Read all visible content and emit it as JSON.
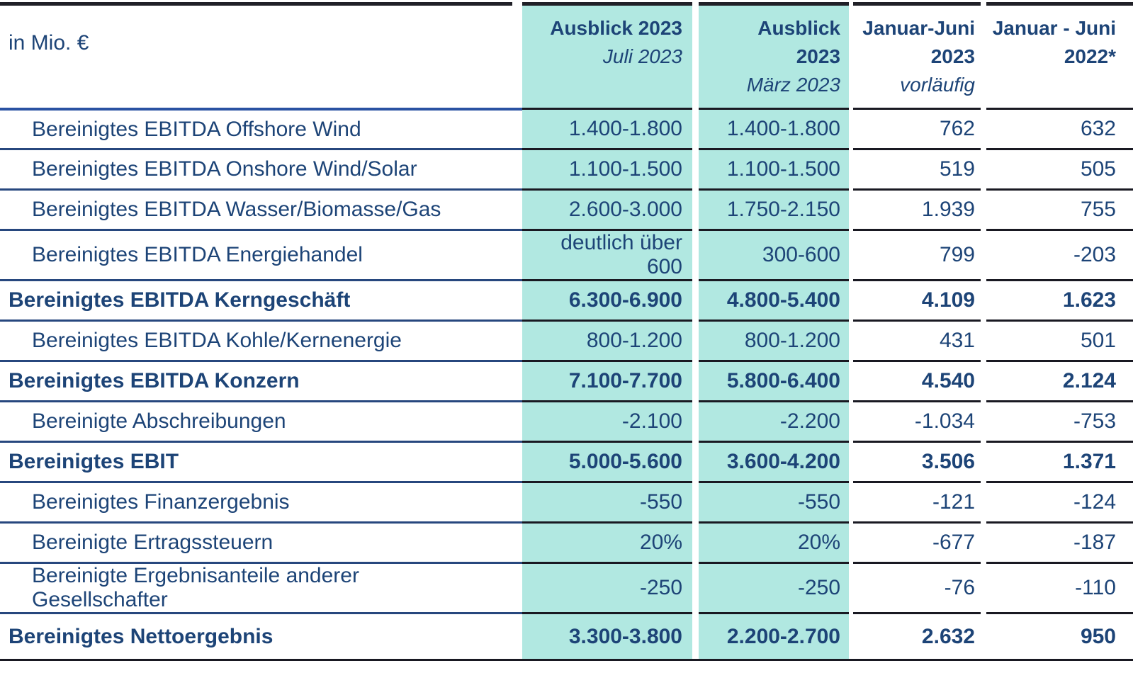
{
  "table": {
    "unit_label": "in Mio. €",
    "columns": [
      {
        "title": "Ausblick 2023",
        "subtitle": "Juli 2023",
        "highlight": true
      },
      {
        "title": "Ausblick 2023",
        "subtitle": "März 2023",
        "highlight": true
      },
      {
        "title": "Januar-Juni 2023",
        "subtitle": "vorläufig",
        "highlight": false
      },
      {
        "title": "Januar - Juni 2022*",
        "subtitle": "",
        "highlight": false
      }
    ],
    "rows": [
      {
        "label": "Bereinigtes EBITDA Offshore Wind",
        "bold": false,
        "values": [
          "1.400-1.800",
          "1.400-1.800",
          "762",
          "632"
        ]
      },
      {
        "label": "Bereinigtes EBITDA Onshore Wind/Solar",
        "bold": false,
        "values": [
          "1.100-1.500",
          "1.100-1.500",
          "519",
          "505"
        ]
      },
      {
        "label": "Bereinigtes EBITDA Wasser/Biomasse/Gas",
        "bold": false,
        "values": [
          "2.600-3.000",
          "1.750-2.150",
          "1.939",
          "755"
        ]
      },
      {
        "label": "Bereinigtes EBITDA Energiehandel",
        "bold": false,
        "values": [
          "deutlich über 600",
          "300-600",
          "799",
          "-203"
        ]
      },
      {
        "label": "Bereinigtes EBITDA Kerngeschäft",
        "bold": true,
        "values": [
          "6.300-6.900",
          "4.800-5.400",
          "4.109",
          "1.623"
        ]
      },
      {
        "label": "Bereinigtes EBITDA Kohle/Kernenergie",
        "bold": false,
        "values": [
          "800-1.200",
          "800-1.200",
          "431",
          "501"
        ]
      },
      {
        "label": "Bereinigtes EBITDA Konzern",
        "bold": true,
        "values": [
          "7.100-7.700",
          "5.800-6.400",
          "4.540",
          "2.124"
        ]
      },
      {
        "label": "Bereinigte Abschreibungen",
        "bold": false,
        "values": [
          "-2.100",
          "-2.200",
          "-1.034",
          "-753"
        ]
      },
      {
        "label": "Bereinigtes EBIT",
        "bold": true,
        "values": [
          "5.000-5.600",
          "3.600-4.200",
          "3.506",
          "1.371"
        ]
      },
      {
        "label": "Bereinigtes Finanzergebnis",
        "bold": false,
        "values": [
          "-550",
          "-550",
          "-121",
          "-124"
        ]
      },
      {
        "label": "Bereinigte Ertragssteuern",
        "bold": false,
        "values": [
          "20%",
          "20%",
          "-677",
          "-187"
        ]
      },
      {
        "label": "Bereinigte Ergebnisanteile anderer Gesellschafter",
        "bold": false,
        "values": [
          "-250",
          "-250",
          "-76",
          "-110"
        ]
      },
      {
        "label": "Bereinigtes Nettoergebnis",
        "bold": true,
        "values": [
          "3.300-3.800",
          "2.200-2.700",
          "2.632",
          "950"
        ]
      }
    ]
  },
  "colors": {
    "highlight_teal": "#b1e8e1",
    "text_navy": "#1d4477",
    "line_dark": "#202027",
    "line_blue": "#2a52a2"
  }
}
